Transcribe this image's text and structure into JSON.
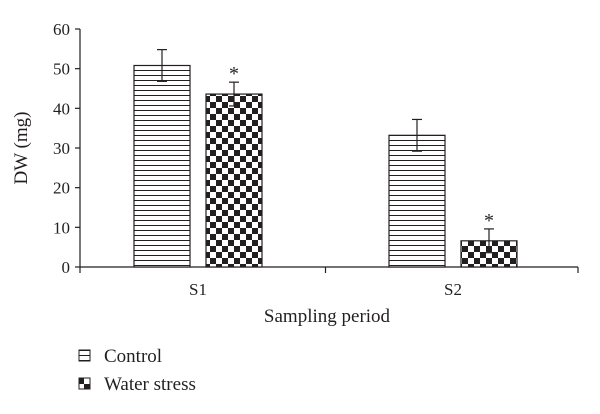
{
  "chart_data": {
    "type": "bar",
    "title": "",
    "xlabel": "Sampling period",
    "ylabel": "DW (mg)",
    "categories": [
      "S1",
      "S2"
    ],
    "ylim": [
      0,
      60
    ],
    "yticks": [
      0,
      10,
      20,
      30,
      40,
      50,
      60
    ],
    "grid": false,
    "legend_position": "bottom-left",
    "series": [
      {
        "name": "Control",
        "pattern": "horizontal-lines",
        "values": [
          50.8,
          33.2
        ],
        "errors": [
          4.0,
          4.0
        ],
        "annotations": [
          "",
          ""
        ]
      },
      {
        "name": "Water stress",
        "pattern": "checkerboard",
        "values": [
          43.6,
          6.6
        ],
        "errors": [
          3.0,
          3.0
        ],
        "annotations": [
          "*",
          "*"
        ]
      }
    ]
  },
  "colors": {
    "ink": "#231f20",
    "background": "#ffffff"
  }
}
